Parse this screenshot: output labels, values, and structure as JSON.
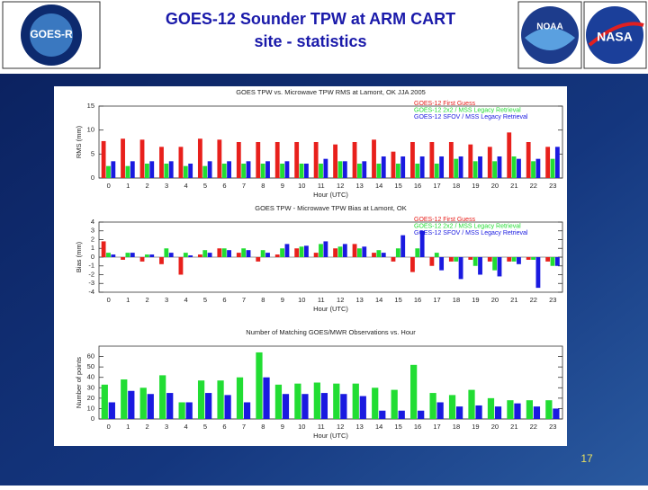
{
  "title": [
    "GOES-12 Sounder TPW at ARM CART",
    "site - statistics"
  ],
  "logos": [
    "GOES-R",
    "NOAA",
    "NASA"
  ],
  "page_number": "17",
  "chart_data": [
    {
      "type": "bar",
      "title": "GOES TPW vs. Microwave TPW RMS at Lamont, OK JJA 2005",
      "x_label": "Hour (UTC)",
      "y_label": "RMS (mm)",
      "categories": [
        "0",
        "1",
        "2",
        "3",
        "4",
        "5",
        "6",
        "7",
        "8",
        "9",
        "10",
        "11",
        "12",
        "13",
        "14",
        "15",
        "16",
        "17",
        "18",
        "19",
        "20",
        "21",
        "22",
        "23"
      ],
      "series": [
        {
          "name": "GOES-12 First Guess",
          "color": "#e8201c",
          "values": [
            7.7,
            8.2,
            8.0,
            6.5,
            6.5,
            8.2,
            8.0,
            7.5,
            7.5,
            7.5,
            7.5,
            7.5,
            7.0,
            7.5,
            8.0,
            5.5,
            7.5,
            7.5,
            7.5,
            7.0,
            6.5,
            9.5,
            7.5,
            6.5
          ]
        },
        {
          "name": "GOES-12 2x2 / MSS Legacy Retrieval",
          "color": "#22dd33",
          "values": [
            2.5,
            2.5,
            3.0,
            3.0,
            2.5,
            2.5,
            3.0,
            3.0,
            3.0,
            3.0,
            3.0,
            3.0,
            3.5,
            3.0,
            3.0,
            3.0,
            3.0,
            3.0,
            4.0,
            3.5,
            3.5,
            4.5,
            3.5,
            4.0
          ]
        },
        {
          "name": "GOES-12 SFOV / MSS Legacy Retrieval",
          "color": "#1a1ae0",
          "values": [
            3.5,
            3.5,
            3.5,
            3.5,
            3.0,
            3.5,
            3.5,
            3.5,
            3.5,
            3.5,
            3.0,
            4.0,
            3.5,
            3.5,
            4.5,
            4.5,
            4.5,
            4.5,
            4.5,
            4.5,
            4.5,
            4.0,
            4.0,
            6.5
          ]
        }
      ],
      "ylim": [
        0,
        15
      ],
      "yticks": [
        0,
        5,
        10,
        15
      ],
      "legend": "upper right"
    },
    {
      "type": "bar",
      "title": "GOES TPW - Microwave TPW Bias at Lamont, OK",
      "x_label": "Hour (UTC)",
      "y_label": "Bias (mm)",
      "categories": [
        "0",
        "1",
        "2",
        "3",
        "4",
        "5",
        "6",
        "7",
        "8",
        "9",
        "10",
        "11",
        "12",
        "13",
        "14",
        "15",
        "16",
        "17",
        "18",
        "19",
        "20",
        "21",
        "22",
        "23"
      ],
      "series": [
        {
          "name": "GOES-12 First Guess",
          "color": "#e8201c",
          "values": [
            1.8,
            -0.3,
            -0.5,
            -0.8,
            -2.0,
            0.3,
            1.0,
            0.5,
            -0.5,
            0.3,
            1.0,
            0.5,
            1.0,
            1.5,
            0.5,
            -0.5,
            -1.7,
            -1.0,
            -0.5,
            -0.3,
            -0.5,
            -0.5,
            -0.3,
            -0.5
          ]
        },
        {
          "name": "GOES-12 2x2 / MSS Legacy Retrieval",
          "color": "#22dd33",
          "values": [
            0.5,
            0.5,
            0.3,
            1.0,
            0.5,
            0.8,
            1.0,
            1.0,
            0.8,
            1.0,
            1.2,
            1.5,
            1.2,
            1.0,
            0.8,
            1.0,
            1.0,
            0.5,
            -0.5,
            -1.0,
            -1.5,
            -0.5,
            -0.3,
            -1.0
          ]
        },
        {
          "name": "GOES-12 SFOV / MSS Legacy Retrieval",
          "color": "#1a1ae0",
          "values": [
            0.3,
            0.5,
            0.3,
            0.5,
            0.2,
            0.5,
            0.8,
            0.8,
            0.5,
            1.5,
            1.3,
            1.8,
            1.5,
            1.2,
            0.5,
            2.5,
            3.0,
            -1.5,
            -2.5,
            -2.0,
            -2.2,
            -0.8,
            -3.5,
            -1.0
          ]
        }
      ],
      "ylim": [
        -4,
        4
      ],
      "yticks": [
        -4,
        -3,
        -2,
        -1,
        0,
        1,
        2,
        3,
        4
      ],
      "legend": "upper right"
    },
    {
      "type": "bar",
      "title": "Number of Matching GOES/MWR Observations vs. Hour",
      "x_label": "Hour (UTC)",
      "y_label": "Number of points",
      "categories": [
        "0",
        "1",
        "2",
        "3",
        "4",
        "5",
        "6",
        "7",
        "8",
        "9",
        "10",
        "11",
        "12",
        "13",
        "14",
        "15",
        "16",
        "17",
        "18",
        "19",
        "20",
        "21",
        "22",
        "23"
      ],
      "series": [
        {
          "color": "#22dd33",
          "values": [
            33,
            38,
            30,
            42,
            16,
            37,
            37,
            40,
            64,
            33,
            34,
            35,
            34,
            34,
            30,
            28,
            52,
            25,
            23,
            28,
            20,
            18,
            18,
            18
          ]
        },
        {
          "color": "#1a1ae0",
          "values": [
            16,
            27,
            24,
            25,
            16,
            25,
            23,
            16,
            40,
            24,
            24,
            25,
            24,
            22,
            8,
            8,
            8,
            16,
            12,
            13,
            12,
            15,
            12,
            10
          ]
        }
      ],
      "ylim": [
        0,
        70
      ],
      "yticks": [
        0,
        10,
        20,
        30,
        40,
        50,
        60
      ]
    }
  ]
}
